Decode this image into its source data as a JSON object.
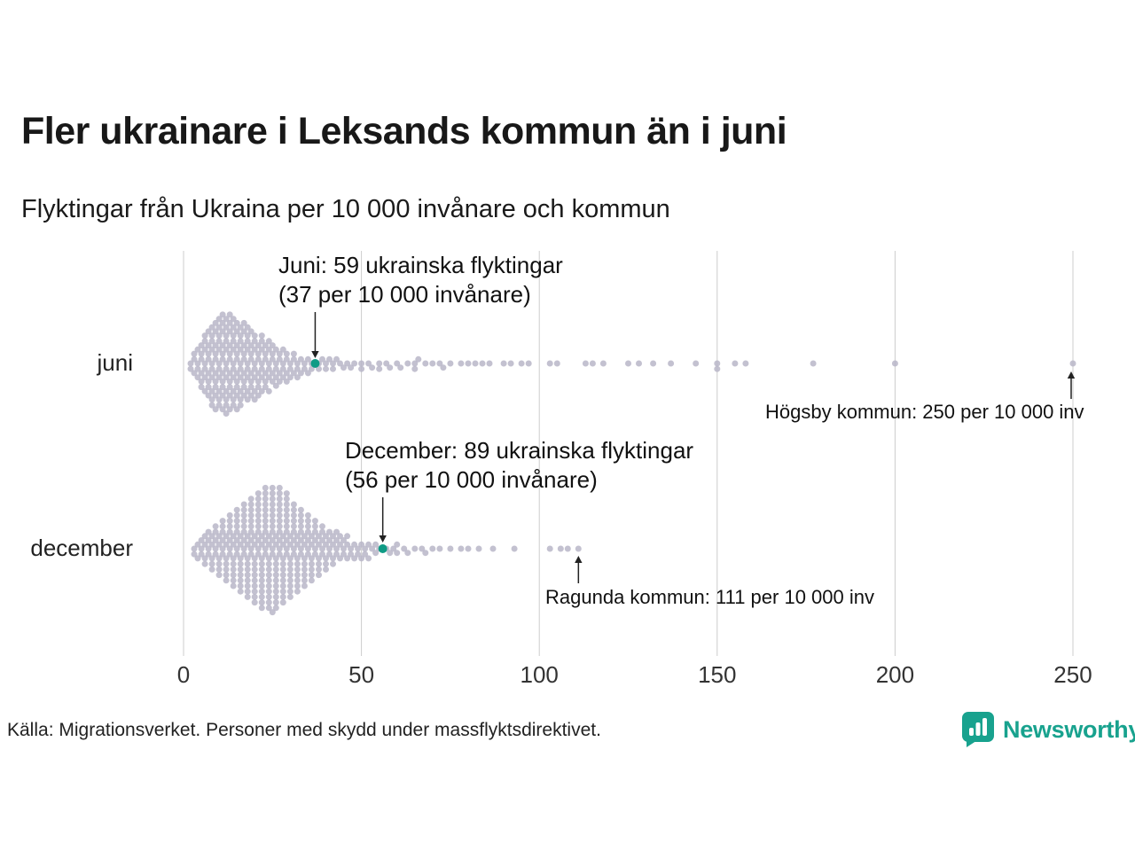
{
  "title": "Fler ukrainare i Leksands kommun än i juni",
  "subtitle": "Flyktingar från Ukraina per 10 000 invånare och kommun",
  "source": "Källa: Migrationsverket. Personer med skydd under massflyktsdirektivet.",
  "brand": "Newsworthy",
  "colors": {
    "dot": "#b9b6c8",
    "accent": "#0f9b85",
    "grid": "#cccccc",
    "text": "#1a1a1a",
    "brand_teal": "#18a28e",
    "arrow": "#222222"
  },
  "chart_data": {
    "type": "beeswarm",
    "xlabel": "",
    "xlim": [
      0,
      250
    ],
    "x_ticks": [
      0,
      50,
      100,
      150,
      200,
      250
    ],
    "grid": true,
    "rows": [
      {
        "label": "juni",
        "highlight": {
          "value": 37,
          "line1": "Juni: 59 ukrainska flyktingar",
          "line2": "(37 per 10 000 invånare)"
        },
        "outlier": {
          "value": 250,
          "label": "Högsby kommun: 250 per 10 000 inv"
        },
        "values": [
          2,
          2,
          3,
          3,
          3,
          4,
          4,
          4,
          4,
          5,
          5,
          5,
          5,
          5,
          5,
          6,
          6,
          6,
          6,
          6,
          6,
          6,
          7,
          7,
          7,
          7,
          7,
          7,
          7,
          7,
          8,
          8,
          8,
          8,
          8,
          8,
          8,
          8,
          8,
          8,
          9,
          9,
          9,
          9,
          9,
          9,
          9,
          9,
          9,
          9,
          10,
          10,
          10,
          10,
          10,
          10,
          10,
          10,
          10,
          10,
          10,
          11,
          11,
          11,
          11,
          11,
          11,
          11,
          11,
          11,
          11,
          11,
          12,
          12,
          12,
          12,
          12,
          12,
          12,
          12,
          12,
          12,
          12,
          12,
          13,
          13,
          13,
          13,
          13,
          13,
          13,
          13,
          13,
          13,
          13,
          14,
          14,
          14,
          14,
          14,
          14,
          14,
          14,
          14,
          14,
          14,
          15,
          15,
          15,
          15,
          15,
          15,
          15,
          15,
          15,
          15,
          16,
          16,
          16,
          16,
          16,
          16,
          16,
          16,
          16,
          16,
          17,
          17,
          17,
          17,
          17,
          17,
          17,
          17,
          17,
          18,
          18,
          18,
          18,
          18,
          18,
          18,
          18,
          18,
          19,
          19,
          19,
          19,
          19,
          19,
          19,
          19,
          20,
          20,
          20,
          20,
          20,
          20,
          20,
          20,
          21,
          21,
          21,
          21,
          21,
          21,
          21,
          22,
          22,
          22,
          22,
          22,
          22,
          22,
          23,
          23,
          23,
          23,
          23,
          23,
          24,
          24,
          24,
          24,
          24,
          24,
          25,
          25,
          25,
          25,
          25,
          26,
          26,
          26,
          26,
          26,
          27,
          27,
          27,
          27,
          28,
          28,
          28,
          28,
          29,
          29,
          29,
          29,
          30,
          30,
          30,
          31,
          31,
          31,
          32,
          32,
          32,
          33,
          33,
          34,
          34,
          35,
          35,
          36,
          36,
          38,
          38,
          39,
          40,
          40,
          41,
          42,
          42,
          43,
          44,
          45,
          46,
          47,
          48,
          50,
          50,
          52,
          53,
          55,
          55,
          57,
          58,
          60,
          61,
          63,
          65,
          65,
          66,
          68,
          70,
          72,
          73,
          75,
          78,
          80,
          82,
          84,
          86,
          90,
          92,
          95,
          97,
          103,
          105,
          113,
          115,
          118,
          125,
          128,
          132,
          137,
          144,
          150,
          150,
          155,
          158,
          177,
          200,
          250
        ]
      },
      {
        "label": "december",
        "highlight": {
          "value": 56,
          "line1": "December: 89 ukrainska flyktingar",
          "line2": "(56 per 10 000 invånare)"
        },
        "outlier": {
          "value": 111,
          "label": "Ragunda kommun: 111 per 10 000 inv"
        },
        "values": [
          3,
          3,
          4,
          4,
          5,
          5,
          5,
          6,
          6,
          6,
          6,
          7,
          7,
          7,
          7,
          8,
          8,
          8,
          8,
          8,
          9,
          9,
          9,
          9,
          9,
          10,
          10,
          10,
          10,
          10,
          10,
          11,
          11,
          11,
          11,
          11,
          11,
          12,
          12,
          12,
          12,
          12,
          12,
          12,
          13,
          13,
          13,
          13,
          13,
          13,
          13,
          14,
          14,
          14,
          14,
          14,
          14,
          14,
          14,
          15,
          15,
          15,
          15,
          15,
          15,
          15,
          15,
          16,
          16,
          16,
          16,
          16,
          16,
          16,
          16,
          16,
          17,
          17,
          17,
          17,
          17,
          17,
          17,
          17,
          17,
          18,
          18,
          18,
          18,
          18,
          18,
          18,
          18,
          18,
          18,
          19,
          19,
          19,
          19,
          19,
          19,
          19,
          19,
          19,
          19,
          20,
          20,
          20,
          20,
          20,
          20,
          20,
          20,
          20,
          20,
          20,
          21,
          21,
          21,
          21,
          21,
          21,
          21,
          21,
          21,
          21,
          21,
          22,
          22,
          22,
          22,
          22,
          22,
          22,
          22,
          22,
          22,
          22,
          22,
          23,
          23,
          23,
          23,
          23,
          23,
          23,
          23,
          23,
          23,
          23,
          23,
          24,
          24,
          24,
          24,
          24,
          24,
          24,
          24,
          24,
          24,
          24,
          24,
          25,
          25,
          25,
          25,
          25,
          25,
          25,
          25,
          25,
          25,
          25,
          25,
          25,
          26,
          26,
          26,
          26,
          26,
          26,
          26,
          26,
          26,
          26,
          26,
          26,
          27,
          27,
          27,
          27,
          27,
          27,
          27,
          27,
          27,
          27,
          27,
          27,
          28,
          28,
          28,
          28,
          28,
          28,
          28,
          28,
          28,
          28,
          28,
          29,
          29,
          29,
          29,
          29,
          29,
          29,
          29,
          29,
          29,
          29,
          30,
          30,
          30,
          30,
          30,
          30,
          30,
          30,
          30,
          30,
          31,
          31,
          31,
          31,
          31,
          31,
          31,
          31,
          31,
          32,
          32,
          32,
          32,
          32,
          32,
          32,
          32,
          32,
          33,
          33,
          33,
          33,
          33,
          33,
          33,
          33,
          34,
          34,
          34,
          34,
          34,
          34,
          34,
          34,
          35,
          35,
          35,
          35,
          35,
          35,
          35,
          36,
          36,
          36,
          36,
          36,
          36,
          36,
          37,
          37,
          37,
          37,
          37,
          37,
          38,
          38,
          38,
          38,
          38,
          38,
          39,
          39,
          39,
          39,
          39,
          40,
          40,
          40,
          40,
          40,
          41,
          41,
          41,
          41,
          42,
          42,
          42,
          42,
          43,
          43,
          43,
          43,
          44,
          44,
          44,
          45,
          45,
          45,
          46,
          46,
          46,
          47,
          47,
          48,
          48,
          49,
          49,
          50,
          50,
          51,
          51,
          52,
          52,
          53,
          54,
          54,
          55,
          57,
          58,
          59,
          60,
          60,
          62,
          63,
          65,
          67,
          68,
          70,
          72,
          75,
          78,
          80,
          83,
          87,
          93,
          103,
          106,
          108,
          111
        ]
      }
    ]
  }
}
